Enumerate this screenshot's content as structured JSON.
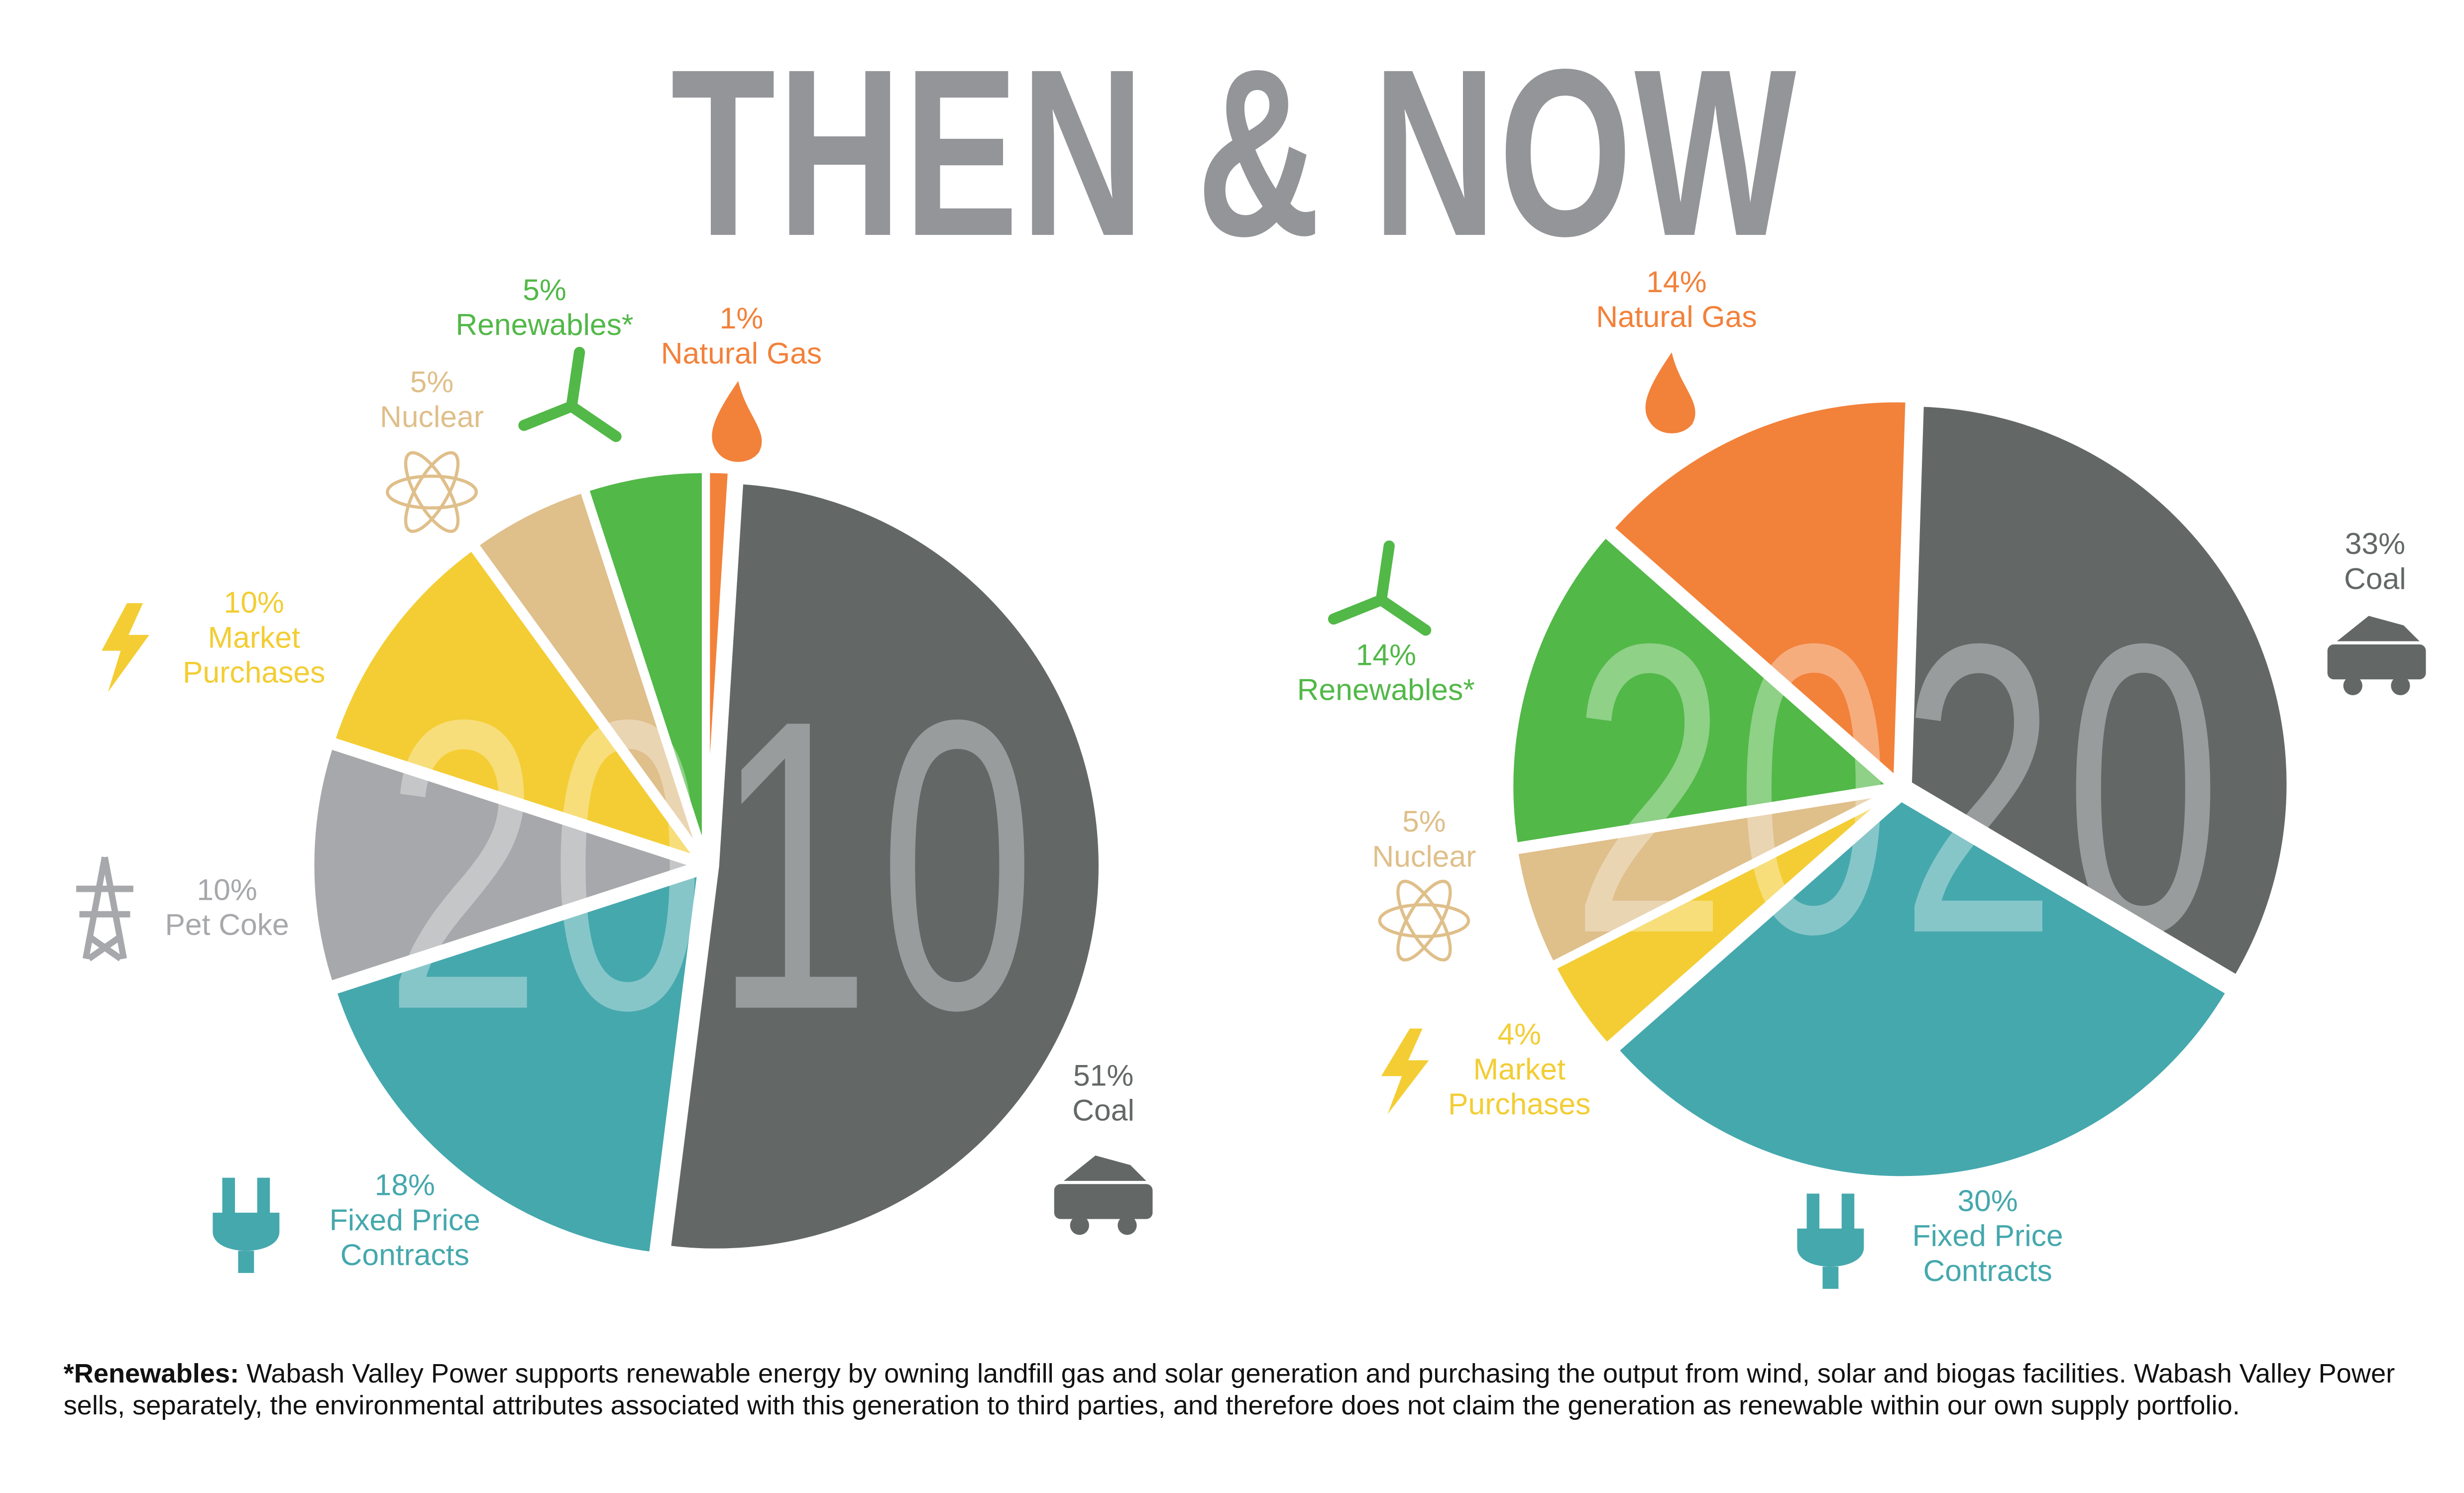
{
  "title": "THEN & NOW",
  "chart_data": [
    {
      "type": "pie",
      "title": "2010",
      "categories": [
        "Coal",
        "Fixed Price Contracts",
        "Pet Coke",
        "Market Purchases",
        "Nuclear",
        "Renewables*",
        "Natural Gas"
      ],
      "values": [
        51,
        18,
        10,
        10,
        5,
        5,
        1
      ],
      "value_labels": [
        "51%",
        "18%",
        "10%",
        "10%",
        "5%",
        "5%",
        "1%"
      ],
      "colors": [
        "#636867",
        "#45a8ad",
        "#a7a8ab",
        "#f3cd33",
        "#dfbf8a",
        "#52b848",
        "#f2813a"
      ]
    },
    {
      "type": "pie",
      "title": "2020",
      "categories": [
        "Coal",
        "Fixed Price Contracts",
        "Market Purchases",
        "Nuclear",
        "Renewables*",
        "Natural Gas"
      ],
      "values": [
        33,
        30,
        4,
        5,
        14,
        14
      ],
      "value_labels": [
        "33%",
        "30%",
        "4%",
        "5%",
        "14%",
        "14%"
      ],
      "colors": [
        "#636867",
        "#45a8ad",
        "#f3cd33",
        "#dfbf8a",
        "#52b848",
        "#f2813a"
      ]
    }
  ],
  "footnote": {
    "label": "*Renewables:",
    "text": "Wabash Valley Power supports renewable energy by owning landfill gas and solar generation and purchasing the output from wind, solar and biogas facilities. Wabash Valley Power sells, separately, the environmental attributes associated with this generation to third parties, and therefore does not claim the generation as renewable within our own supply portfolio."
  }
}
